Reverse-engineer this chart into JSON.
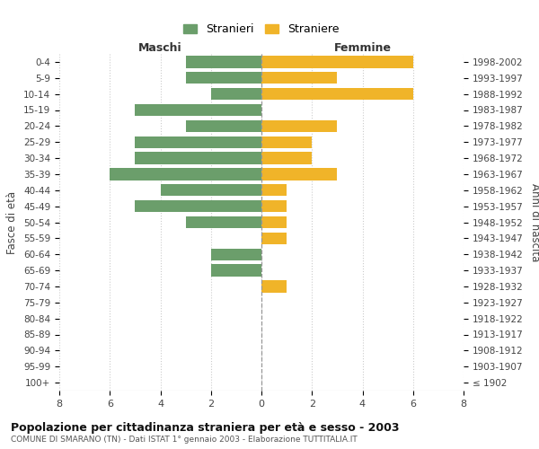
{
  "age_groups": [
    "0-4",
    "5-9",
    "10-14",
    "15-19",
    "20-24",
    "25-29",
    "30-34",
    "35-39",
    "40-44",
    "45-49",
    "50-54",
    "55-59",
    "60-64",
    "65-69",
    "70-74",
    "75-79",
    "80-84",
    "85-89",
    "90-94",
    "95-99",
    "100+"
  ],
  "birth_years": [
    "1998-2002",
    "1993-1997",
    "1988-1992",
    "1983-1987",
    "1978-1982",
    "1973-1977",
    "1968-1972",
    "1963-1967",
    "1958-1962",
    "1953-1957",
    "1948-1952",
    "1943-1947",
    "1938-1942",
    "1933-1937",
    "1928-1932",
    "1923-1927",
    "1918-1922",
    "1913-1917",
    "1908-1912",
    "1903-1907",
    "≤ 1902"
  ],
  "maschi": [
    3,
    3,
    2,
    5,
    3,
    5,
    5,
    6,
    4,
    5,
    3,
    0,
    2,
    2,
    0,
    0,
    0,
    0,
    0,
    0,
    0
  ],
  "femmine": [
    6,
    3,
    6,
    0,
    3,
    2,
    2,
    3,
    1,
    1,
    1,
    1,
    0,
    0,
    1,
    0,
    0,
    0,
    0,
    0,
    0
  ],
  "color_maschi": "#6b9e6b",
  "color_femmine": "#f0b429",
  "title": "Popolazione per cittadinanza straniera per età e sesso - 2003",
  "subtitle": "COMUNE DI SMARANO (TN) - Dati ISTAT 1° gennaio 2003 - Elaborazione TUTTITALIA.IT",
  "xlabel_left": "Maschi",
  "xlabel_right": "Femmine",
  "ylabel_left": "Fasce di età",
  "ylabel_right": "Anni di nascita",
  "legend_maschi": "Stranieri",
  "legend_femmine": "Straniere",
  "xlim": 8,
  "background_color": "#ffffff",
  "grid_color": "#cccccc"
}
